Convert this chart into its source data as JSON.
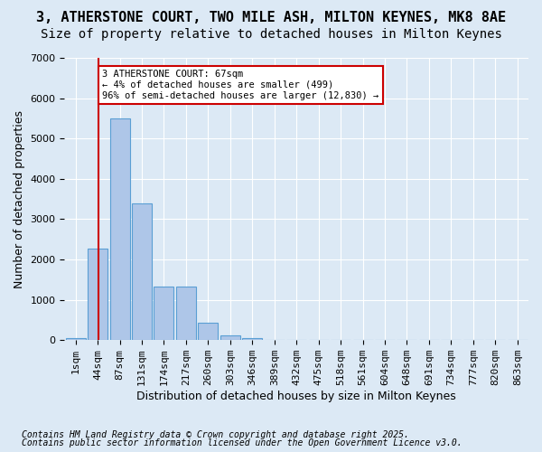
{
  "title_line1": "3, ATHERSTONE COURT, TWO MILE ASH, MILTON KEYNES, MK8 8AE",
  "title_line2": "Size of property relative to detached houses in Milton Keynes",
  "xlabel": "Distribution of detached houses by size in Milton Keynes",
  "ylabel": "Number of detached properties",
  "bins": [
    "1sqm",
    "44sqm",
    "87sqm",
    "131sqm",
    "174sqm",
    "217sqm",
    "260sqm",
    "303sqm",
    "346sqm",
    "389sqm",
    "432sqm",
    "475sqm",
    "518sqm",
    "561sqm",
    "604sqm",
    "648sqm",
    "691sqm",
    "734sqm",
    "777sqm",
    "820sqm",
    "863sqm"
  ],
  "values": [
    50,
    2280,
    5500,
    3380,
    1330,
    1330,
    430,
    120,
    50,
    0,
    0,
    0,
    0,
    0,
    0,
    0,
    0,
    0,
    0,
    0,
    0
  ],
  "bar_color": "#aec6e8",
  "bar_edge_color": "#5a9fd4",
  "annotation_text": "3 ATHERSTONE COURT: 67sqm\n← 4% of detached houses are smaller (499)\n96% of semi-detached houses are larger (12,830) →",
  "annotation_box_color": "#ffffff",
  "annotation_box_edge": "#cc0000",
  "vline_color": "#cc0000",
  "background_color": "#dce9f5",
  "plot_background": "#dce9f5",
  "footer_line1": "Contains HM Land Registry data © Crown copyright and database right 2025.",
  "footer_line2": "Contains public sector information licensed under the Open Government Licence v3.0.",
  "ylim": [
    0,
    7000
  ],
  "yticks": [
    0,
    1000,
    2000,
    3000,
    4000,
    5000,
    6000,
    7000
  ],
  "title_fontsize": 11,
  "subtitle_fontsize": 10,
  "axis_label_fontsize": 9,
  "tick_fontsize": 8,
  "footer_fontsize": 7,
  "vline_x_data": 1.031
}
